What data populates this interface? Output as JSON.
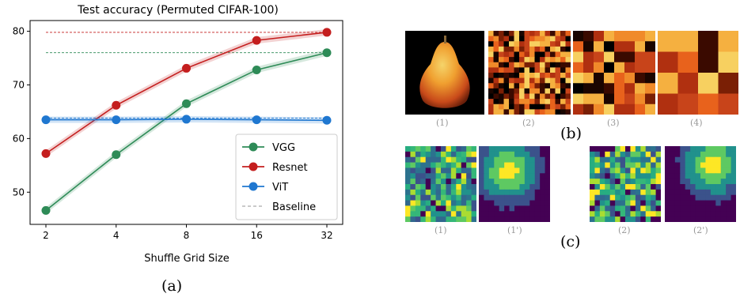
{
  "panel_a_caption": "(a)",
  "panel_b_caption": "(b)",
  "panel_c_caption": "(c)",
  "panel_b_labels": [
    "(1)",
    "(2)",
    "(3)",
    "(4)"
  ],
  "panel_c_labels": [
    "(1)",
    "(1')",
    "(2)",
    "(2')"
  ],
  "colors": {
    "vgg": "#2e8b57",
    "resnet": "#c41e1e",
    "vit": "#1f77d0",
    "baseline": "#aaaaaa"
  },
  "chart_data": {
    "type": "line",
    "title": "Test accuracy (Permuted CIFAR-100)",
    "xlabel": "Shuffle Grid Size",
    "ylabel": "",
    "x": [
      "2",
      "4",
      "8",
      "16",
      "32"
    ],
    "ylim": [
      44,
      82
    ],
    "yticks": [
      50,
      60,
      70,
      80
    ],
    "legend_position": "lower-right",
    "grid": false,
    "series": [
      {
        "name": "VGG",
        "color": "#2e8b57",
        "values": [
          46.6,
          57.0,
          66.5,
          72.8,
          76.0
        ],
        "baseline": 76.0
      },
      {
        "name": "Resnet",
        "color": "#c41e1e",
        "values": [
          57.2,
          66.2,
          73.1,
          78.3,
          79.8
        ],
        "baseline": 79.8
      },
      {
        "name": "ViT",
        "color": "#1f77d0",
        "values": [
          63.5,
          63.5,
          63.6,
          63.5,
          63.4
        ],
        "baseline": 63.8
      }
    ],
    "legend": [
      "VGG",
      "Resnet",
      "ViT",
      "Baseline"
    ]
  }
}
